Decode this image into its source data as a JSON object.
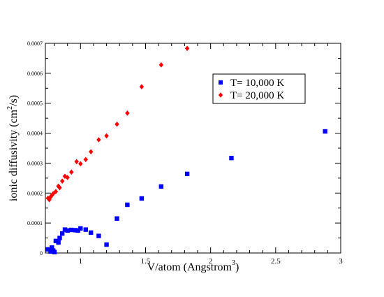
{
  "chart_data": {
    "type": "scatter",
    "xlabel": "V/atom (Angstrom",
    "xlabel_sup": "3",
    "xlabel_tail": ")",
    "ylabel": "ionic diffusivity (cm",
    "ylabel_sup": "2",
    "ylabel_tail": "/s)",
    "xlim": [
      0.73,
      3.0
    ],
    "ylim": [
      0,
      0.0007
    ],
    "x_ticks": [
      1,
      1.5,
      2,
      2.5,
      3
    ],
    "x_tick_labels": [
      "1",
      "1.5",
      "2",
      "2.5",
      "3"
    ],
    "y_ticks": [
      0,
      0.0001,
      0.0002,
      0.0003,
      0.0004,
      0.0005,
      0.0006,
      0.0007
    ],
    "y_tick_labels": [
      "0",
      "0.0001",
      "0.0002",
      "0.0003",
      "0.0004",
      "0.0005",
      "0.0006",
      "0.0007"
    ],
    "grid": false,
    "legend_position": "top-right",
    "series": [
      {
        "name": "T= 10,000 K",
        "color": "#0000ff",
        "marker": "square",
        "points": [
          {
            "x": 0.75,
            "y": 1.2e-05
          },
          {
            "x": 0.77,
            "y": 5e-06
          },
          {
            "x": 0.78,
            "y": 1.8e-05
          },
          {
            "x": 0.79,
            "y": 8e-06
          },
          {
            "x": 0.8,
            "y": 3e-06
          },
          {
            "x": 0.81,
            "y": 4e-05
          },
          {
            "x": 0.83,
            "y": 3.5e-05
          },
          {
            "x": 0.84,
            "y": 5e-05
          },
          {
            "x": 0.86,
            "y": 6.5e-05
          },
          {
            "x": 0.88,
            "y": 7.8e-05
          },
          {
            "x": 0.9,
            "y": 7.5e-05
          },
          {
            "x": 0.93,
            "y": 7.7e-05
          },
          {
            "x": 0.96,
            "y": 7.6e-05
          },
          {
            "x": 0.98,
            "y": 7.5e-05
          },
          {
            "x": 1.0,
            "y": 8.2e-05
          },
          {
            "x": 1.04,
            "y": 7.8e-05
          },
          {
            "x": 1.08,
            "y": 6.8e-05
          },
          {
            "x": 1.14,
            "y": 5.7e-05
          },
          {
            "x": 1.2,
            "y": 2.8e-05
          },
          {
            "x": 1.28,
            "y": 0.000115
          },
          {
            "x": 1.36,
            "y": 0.000161
          },
          {
            "x": 1.47,
            "y": 0.000182
          },
          {
            "x": 1.62,
            "y": 0.000222
          },
          {
            "x": 1.82,
            "y": 0.000264
          },
          {
            "x": 2.16,
            "y": 0.000317
          },
          {
            "x": 2.88,
            "y": 0.000406
          }
        ]
      },
      {
        "name": "T= 20,000 K",
        "color": "#ff0000",
        "marker": "diamond",
        "points": [
          {
            "x": 0.75,
            "y": 0.000183
          },
          {
            "x": 0.76,
            "y": 0.000178
          },
          {
            "x": 0.77,
            "y": 0.000187
          },
          {
            "x": 0.78,
            "y": 0.000193
          },
          {
            "x": 0.79,
            "y": 0.000198
          },
          {
            "x": 0.81,
            "y": 0.000205
          },
          {
            "x": 0.83,
            "y": 0.000223
          },
          {
            "x": 0.84,
            "y": 0.000218
          },
          {
            "x": 0.86,
            "y": 0.00024
          },
          {
            "x": 0.88,
            "y": 0.000256
          },
          {
            "x": 0.9,
            "y": 0.000252
          },
          {
            "x": 0.93,
            "y": 0.00027
          },
          {
            "x": 0.97,
            "y": 0.000305
          },
          {
            "x": 1.0,
            "y": 0.000298
          },
          {
            "x": 1.04,
            "y": 0.000312
          },
          {
            "x": 1.08,
            "y": 0.000338
          },
          {
            "x": 1.14,
            "y": 0.000378
          },
          {
            "x": 1.2,
            "y": 0.000391
          },
          {
            "x": 1.28,
            "y": 0.00043
          },
          {
            "x": 1.36,
            "y": 0.000467
          },
          {
            "x": 1.47,
            "y": 0.000555
          },
          {
            "x": 1.62,
            "y": 0.000628
          },
          {
            "x": 1.82,
            "y": 0.000683
          }
        ]
      }
    ]
  }
}
